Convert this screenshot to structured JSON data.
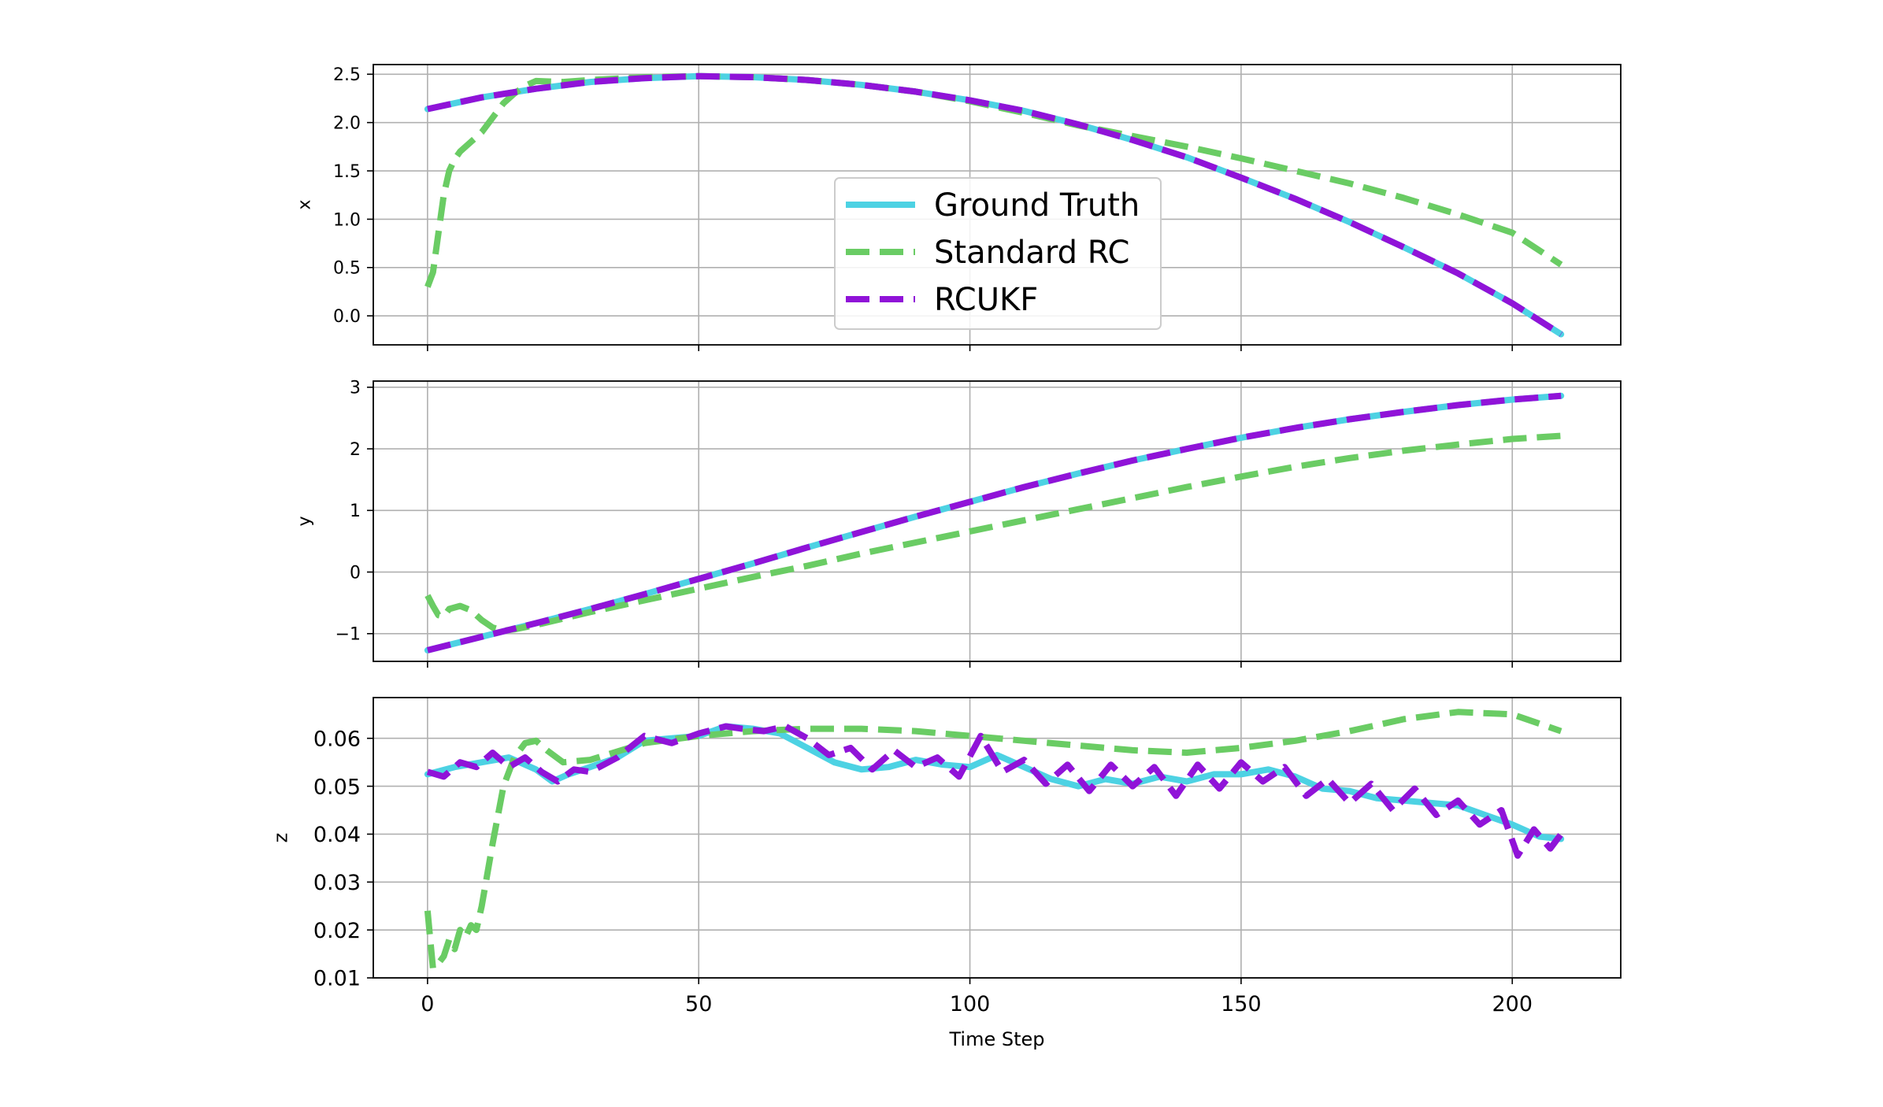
{
  "figure": {
    "xlabel": "Time Step"
  },
  "chart_data": [
    {
      "type": "line",
      "ylabel": "x",
      "xlim": [
        -10,
        220
      ],
      "ylim": [
        -0.3,
        2.6
      ],
      "xticks": [
        0,
        50,
        100,
        150,
        200
      ],
      "yticks": [
        0.0,
        0.5,
        1.0,
        1.5,
        2.0,
        2.5
      ],
      "ytick_labels": [
        "0.0",
        "0.5",
        "1.0",
        "1.5",
        "2.0",
        "2.5"
      ],
      "grid": true,
      "legend": "center",
      "series": [
        {
          "name": "Ground Truth",
          "color": "#4dd2e3",
          "style": "solid",
          "x": [
            0,
            10,
            20,
            30,
            40,
            50,
            60,
            70,
            80,
            90,
            100,
            110,
            120,
            130,
            140,
            150,
            160,
            170,
            180,
            190,
            200,
            209
          ],
          "y": [
            2.14,
            2.26,
            2.35,
            2.42,
            2.46,
            2.48,
            2.47,
            2.44,
            2.39,
            2.32,
            2.23,
            2.12,
            1.98,
            1.82,
            1.64,
            1.43,
            1.21,
            0.97,
            0.71,
            0.44,
            0.13,
            -0.19
          ]
        },
        {
          "name": "Standard RC",
          "color": "#6acc64",
          "style": "dashed",
          "x": [
            0,
            1,
            2,
            3,
            4,
            5,
            6,
            8,
            10,
            12,
            14,
            16,
            18,
            20,
            25,
            30,
            40,
            50,
            60,
            70,
            80,
            90,
            100,
            110,
            120,
            130,
            140,
            150,
            160,
            170,
            180,
            190,
            200,
            209
          ],
          "y": [
            0.3,
            0.45,
            0.85,
            1.25,
            1.5,
            1.62,
            1.7,
            1.8,
            1.9,
            2.05,
            2.2,
            2.3,
            2.38,
            2.43,
            2.42,
            2.44,
            2.47,
            2.48,
            2.47,
            2.44,
            2.39,
            2.32,
            2.22,
            2.1,
            1.97,
            1.86,
            1.75,
            1.63,
            1.5,
            1.37,
            1.22,
            1.05,
            0.86,
            0.53
          ]
        },
        {
          "name": "RCUKF",
          "color": "#9013d8",
          "style": "dashed",
          "x": [
            0,
            10,
            20,
            30,
            40,
            50,
            60,
            70,
            80,
            90,
            100,
            110,
            120,
            130,
            140,
            150,
            160,
            170,
            180,
            190,
            200,
            209
          ],
          "y": [
            2.14,
            2.26,
            2.35,
            2.42,
            2.46,
            2.48,
            2.47,
            2.44,
            2.39,
            2.32,
            2.23,
            2.12,
            1.98,
            1.82,
            1.64,
            1.43,
            1.21,
            0.97,
            0.71,
            0.44,
            0.13,
            -0.19
          ]
        }
      ]
    },
    {
      "type": "line",
      "ylabel": "y",
      "xlim": [
        -10,
        220
      ],
      "ylim": [
        -1.45,
        3.1
      ],
      "xticks": [
        0,
        50,
        100,
        150,
        200
      ],
      "yticks": [
        -1,
        0,
        1,
        2,
        3
      ],
      "ytick_labels": [
        "−1",
        "0",
        "1",
        "2",
        "3"
      ],
      "grid": true,
      "series": [
        {
          "name": "Ground Truth",
          "color": "#4dd2e3",
          "style": "solid",
          "x": [
            0,
            10,
            20,
            30,
            40,
            50,
            60,
            70,
            80,
            90,
            100,
            110,
            120,
            130,
            140,
            150,
            160,
            170,
            180,
            190,
            200,
            209
          ],
          "y": [
            -1.27,
            -1.05,
            -0.83,
            -0.6,
            -0.36,
            -0.11,
            0.14,
            0.4,
            0.65,
            0.9,
            1.14,
            1.38,
            1.6,
            1.81,
            2.0,
            2.18,
            2.34,
            2.48,
            2.6,
            2.71,
            2.8,
            2.86
          ]
        },
        {
          "name": "Standard RC",
          "color": "#6acc64",
          "style": "dashed",
          "x": [
            0,
            1,
            2,
            3,
            4,
            6,
            8,
            10,
            12,
            14,
            16,
            20,
            30,
            40,
            50,
            60,
            70,
            80,
            90,
            100,
            110,
            120,
            130,
            140,
            150,
            160,
            170,
            180,
            190,
            200,
            209
          ],
          "y": [
            -0.38,
            -0.55,
            -0.7,
            -0.72,
            -0.6,
            -0.55,
            -0.62,
            -0.78,
            -0.9,
            -0.95,
            -0.93,
            -0.86,
            -0.65,
            -0.46,
            -0.27,
            -0.08,
            0.1,
            0.3,
            0.48,
            0.66,
            0.84,
            1.02,
            1.2,
            1.38,
            1.55,
            1.71,
            1.85,
            1.97,
            2.07,
            2.16,
            2.21
          ]
        },
        {
          "name": "RCUKF",
          "color": "#9013d8",
          "style": "dashed",
          "x": [
            0,
            10,
            20,
            30,
            40,
            50,
            60,
            70,
            80,
            90,
            100,
            110,
            120,
            130,
            140,
            150,
            160,
            170,
            180,
            190,
            200,
            209
          ],
          "y": [
            -1.27,
            -1.05,
            -0.83,
            -0.6,
            -0.36,
            -0.11,
            0.14,
            0.4,
            0.65,
            0.9,
            1.14,
            1.38,
            1.6,
            1.81,
            2.0,
            2.18,
            2.34,
            2.48,
            2.6,
            2.71,
            2.8,
            2.86
          ]
        }
      ]
    },
    {
      "type": "line",
      "ylabel": "z",
      "xlim": [
        -10,
        220
      ],
      "ylim": [
        0.01,
        0.0685
      ],
      "xticks": [
        0,
        50,
        100,
        150,
        200
      ],
      "xtick_labels": [
        "0",
        "50",
        "100",
        "150",
        "200"
      ],
      "yticks": [
        0.01,
        0.02,
        0.03,
        0.04,
        0.05,
        0.06
      ],
      "ytick_labels": [
        "0.01",
        "0.02",
        "0.03",
        "0.04",
        "0.05",
        "0.06"
      ],
      "grid": true,
      "series": [
        {
          "name": "Ground Truth",
          "color": "#4dd2e3",
          "style": "solid",
          "x": [
            0,
            5,
            10,
            15,
            20,
            23,
            26,
            30,
            35,
            40,
            45,
            50,
            55,
            60,
            65,
            70,
            75,
            80,
            85,
            90,
            95,
            100,
            105,
            110,
            115,
            120,
            125,
            130,
            135,
            140,
            145,
            150,
            155,
            160,
            165,
            170,
            175,
            180,
            185,
            190,
            195,
            200,
            205,
            209
          ],
          "y": [
            0.0525,
            0.054,
            0.055,
            0.056,
            0.0535,
            0.051,
            0.0525,
            0.054,
            0.056,
            0.0595,
            0.06,
            0.0605,
            0.0625,
            0.062,
            0.061,
            0.058,
            0.055,
            0.0535,
            0.054,
            0.0555,
            0.0545,
            0.054,
            0.0565,
            0.054,
            0.0515,
            0.05,
            0.0515,
            0.0505,
            0.052,
            0.051,
            0.0525,
            0.0525,
            0.0535,
            0.052,
            0.0495,
            0.049,
            0.0475,
            0.047,
            0.0465,
            0.046,
            0.044,
            0.042,
            0.0395,
            0.039
          ]
        },
        {
          "name": "Standard RC",
          "color": "#6acc64",
          "style": "dashed",
          "x": [
            0,
            0.5,
            1,
            2,
            3,
            4,
            5,
            6,
            7,
            8,
            9,
            10,
            12,
            14,
            16,
            18,
            20,
            22,
            25,
            30,
            40,
            50,
            60,
            70,
            80,
            90,
            100,
            110,
            120,
            130,
            140,
            150,
            160,
            170,
            180,
            190,
            200,
            209
          ],
          "y": [
            0.024,
            0.018,
            0.012,
            0.013,
            0.0145,
            0.018,
            0.016,
            0.02,
            0.0185,
            0.021,
            0.02,
            0.025,
            0.038,
            0.05,
            0.056,
            0.059,
            0.0595,
            0.0575,
            0.055,
            0.0555,
            0.059,
            0.0605,
            0.0615,
            0.062,
            0.062,
            0.0615,
            0.0605,
            0.0595,
            0.0585,
            0.0575,
            0.057,
            0.058,
            0.0595,
            0.0615,
            0.064,
            0.0655,
            0.065,
            0.0615
          ]
        },
        {
          "name": "RCUKF",
          "color": "#9013d8",
          "style": "dashed",
          "x": [
            0,
            3,
            6,
            9,
            12,
            15,
            18,
            21,
            24,
            27,
            30,
            35,
            40,
            45,
            50,
            55,
            58,
            62,
            66,
            70,
            74,
            78,
            82,
            86,
            90,
            94,
            98,
            102,
            106,
            110,
            114,
            118,
            122,
            126,
            130,
            134,
            138,
            142,
            146,
            150,
            154,
            158,
            162,
            166,
            170,
            174,
            178,
            182,
            186,
            190,
            194,
            198,
            201,
            204,
            207,
            209
          ],
          "y": [
            0.053,
            0.052,
            0.055,
            0.054,
            0.057,
            0.054,
            0.056,
            0.053,
            0.051,
            0.0535,
            0.053,
            0.056,
            0.0605,
            0.059,
            0.061,
            0.0625,
            0.062,
            0.0615,
            0.0625,
            0.06,
            0.0565,
            0.058,
            0.0535,
            0.0575,
            0.054,
            0.056,
            0.052,
            0.0605,
            0.053,
            0.0555,
            0.0505,
            0.0545,
            0.049,
            0.0545,
            0.05,
            0.054,
            0.048,
            0.0545,
            0.0495,
            0.055,
            0.051,
            0.054,
            0.048,
            0.0515,
            0.0465,
            0.0505,
            0.045,
            0.0495,
            0.044,
            0.047,
            0.042,
            0.045,
            0.0355,
            0.041,
            0.037,
            0.04
          ]
        }
      ]
    }
  ]
}
